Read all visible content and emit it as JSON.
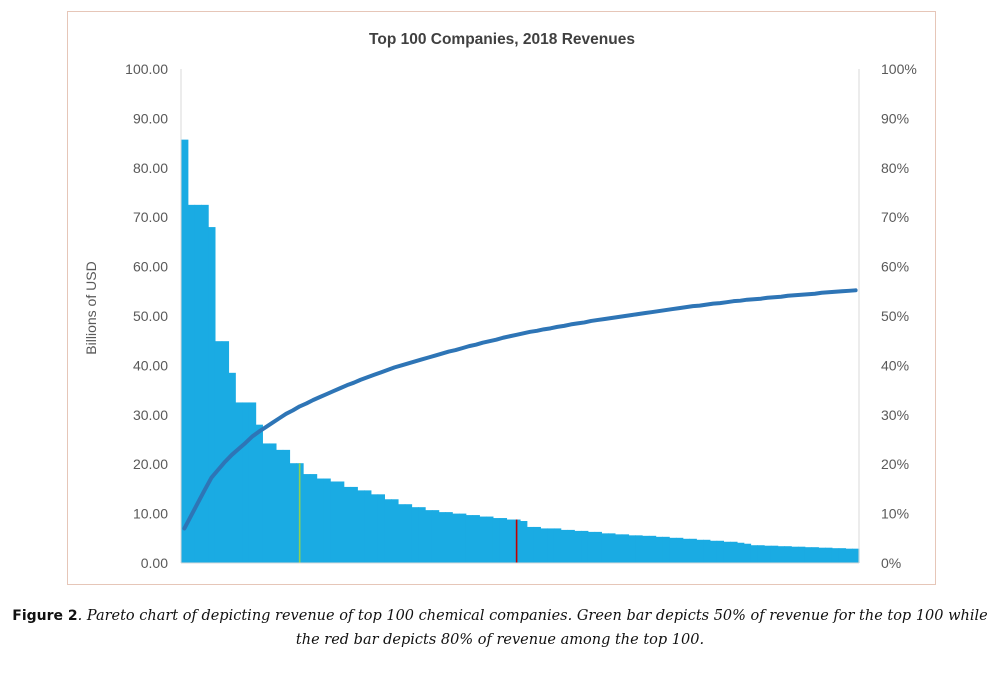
{
  "chart_data": {
    "type": "bar",
    "title": "Top 100 Companies, 2018 Revenues",
    "ylabel": "Billions of USD",
    "y2label": "",
    "ylim": [
      0,
      100
    ],
    "y2lim": [
      0,
      1
    ],
    "yticks": [
      "0.00",
      "10.00",
      "20.00",
      "30.00",
      "40.00",
      "50.00",
      "60.00",
      "70.00",
      "80.00",
      "90.00",
      "100.00"
    ],
    "y2ticks": [
      "0%",
      "10%",
      "20%",
      "30%",
      "40%",
      "50%",
      "60%",
      "70%",
      "80%",
      "90%",
      "100%"
    ],
    "grid": false,
    "legend": "none",
    "n_categories": 100,
    "series": [
      {
        "type": "bar",
        "color": "#1aabe3",
        "values": [
          85.7,
          72.5,
          72.5,
          72.5,
          68.0,
          44.9,
          44.9,
          38.5,
          32.5,
          32.5,
          32.5,
          28.0,
          24.2,
          24.2,
          22.9,
          22.9,
          20.2,
          20.2,
          18.0,
          18.0,
          17.1,
          17.1,
          16.5,
          16.5,
          15.4,
          15.4,
          14.7,
          14.7,
          13.9,
          13.9,
          12.9,
          12.9,
          11.9,
          11.9,
          11.3,
          11.3,
          10.7,
          10.7,
          10.3,
          10.3,
          10.0,
          10.0,
          9.7,
          9.7,
          9.4,
          9.4,
          9.1,
          9.1,
          8.8,
          8.8,
          8.5,
          7.3,
          7.3,
          7.0,
          7.0,
          7.0,
          6.7,
          6.7,
          6.5,
          6.5,
          6.3,
          6.3,
          6.0,
          6.0,
          5.8,
          5.8,
          5.6,
          5.6,
          5.5,
          5.5,
          5.3,
          5.3,
          5.1,
          5.1,
          4.9,
          4.9,
          4.7,
          4.7,
          4.5,
          4.5,
          4.3,
          4.3,
          4.1,
          3.9,
          3.6,
          3.6,
          3.5,
          3.5,
          3.4,
          3.4,
          3.3,
          3.3,
          3.2,
          3.2,
          3.1,
          3.1,
          3.0,
          3.0,
          2.9,
          2.9
        ]
      },
      {
        "type": "line",
        "axis": "right",
        "color": "#2e75b6",
        "values": [
          0.07,
          0.096,
          0.122,
          0.148,
          0.173,
          0.189,
          0.205,
          0.219,
          0.231,
          0.243,
          0.256,
          0.266,
          0.275,
          0.284,
          0.293,
          0.302,
          0.309,
          0.317,
          0.323,
          0.33,
          0.336,
          0.342,
          0.348,
          0.354,
          0.36,
          0.365,
          0.371,
          0.376,
          0.381,
          0.386,
          0.391,
          0.396,
          0.4,
          0.404,
          0.408,
          0.412,
          0.416,
          0.42,
          0.424,
          0.428,
          0.431,
          0.435,
          0.439,
          0.442,
          0.446,
          0.449,
          0.452,
          0.456,
          0.459,
          0.462,
          0.465,
          0.468,
          0.47,
          0.473,
          0.475,
          0.478,
          0.48,
          0.483,
          0.485,
          0.487,
          0.49,
          0.492,
          0.494,
          0.496,
          0.498,
          0.5,
          0.502,
          0.504,
          0.506,
          0.508,
          0.51,
          0.512,
          0.514,
          0.516,
          0.518,
          0.52,
          0.521,
          0.523,
          0.525,
          0.526,
          0.528,
          0.53,
          0.531,
          0.533,
          0.534,
          0.535,
          0.537,
          0.538,
          0.539,
          0.541,
          0.542,
          0.543,
          0.544,
          0.545,
          0.547,
          0.548,
          0.549,
          0.55,
          0.551,
          0.552
        ]
      }
    ],
    "highlights": [
      {
        "index": 17,
        "color": "#92d050"
      },
      {
        "index": 49,
        "color": "#c00000"
      }
    ]
  },
  "caption": {
    "label": "Figure 2",
    "text": ". Pareto chart of depicting revenue of top 100 chemical companies. Green bar depicts 50% of revenue for the top 100 while the red bar depicts 80% of revenue among the top 100."
  }
}
